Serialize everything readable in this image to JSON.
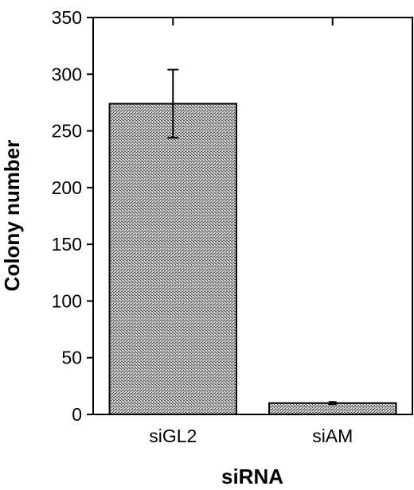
{
  "chart_data": {
    "type": "bar",
    "title": "",
    "xlabel": "siRNA",
    "ylabel": "Colony number",
    "categories": [
      "siGL2",
      "siAM"
    ],
    "values": [
      274,
      10
    ],
    "error": [
      30,
      1
    ],
    "ylim": [
      0,
      350
    ],
    "yticks": [
      0,
      50,
      100,
      150,
      200,
      250,
      300,
      350
    ],
    "ytick_labels": [
      "0",
      "50",
      "100",
      "150",
      "200",
      "250",
      "300",
      "350"
    ],
    "grid": false,
    "legend": "none",
    "bar_fill": "#9a9a9a",
    "bar_edge": "#000000"
  }
}
